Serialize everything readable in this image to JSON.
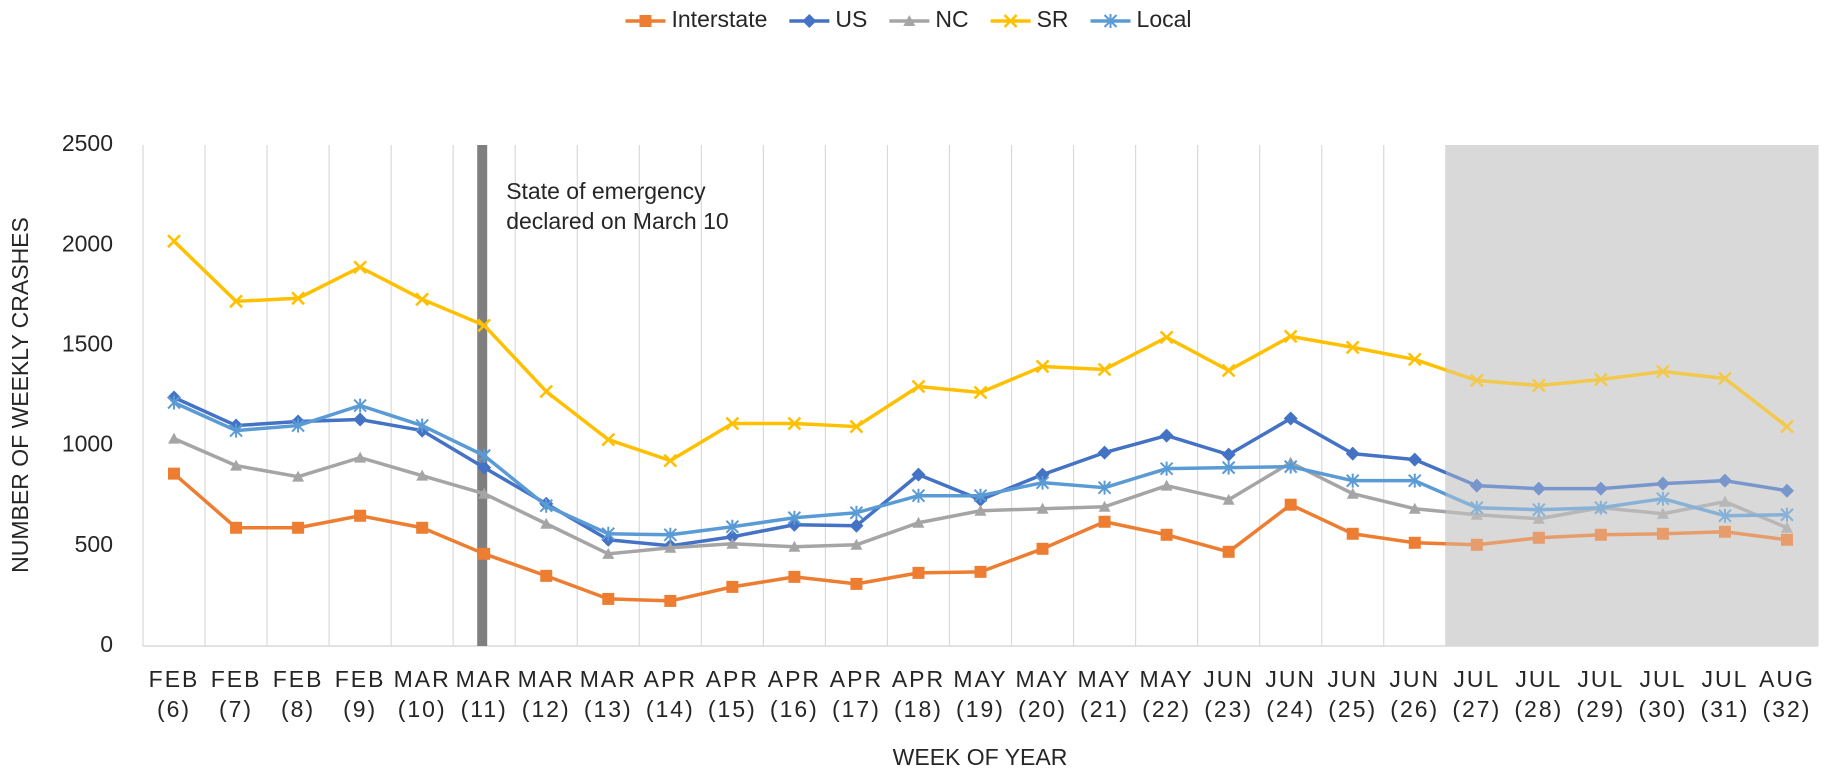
{
  "chart_data": {
    "type": "line",
    "x_label": "WEEK OF YEAR",
    "y_label": "NUMBER OF WEEKLY CRASHES",
    "categories": [
      "FEB (6)",
      "FEB (7)",
      "FEB (8)",
      "FEB (9)",
      "MAR (10)",
      "MAR (11)",
      "MAR (12)",
      "MAR (13)",
      "APR (14)",
      "APR (15)",
      "APR (16)",
      "APR (17)",
      "APR (18)",
      "MAY (19)",
      "MAY (20)",
      "MAY (21)",
      "MAY (22)",
      "JUN (23)",
      "JUN (24)",
      "JUN (25)",
      "JUN (26)",
      "JUL (27)",
      "JUL (28)",
      "JUL (29)",
      "JUL (30)",
      "JUL (31)",
      "AUG (32)"
    ],
    "series": [
      {
        "name": "Interstate",
        "color": "#ED7D31",
        "marker": "square",
        "values": [
          860,
          590,
          590,
          650,
          590,
          460,
          350,
          235,
          225,
          295,
          345,
          310,
          365,
          370,
          485,
          620,
          555,
          470,
          705,
          560,
          515,
          505,
          540,
          555,
          560,
          570,
          530
        ]
      },
      {
        "name": "US",
        "color": "#4472C4",
        "marker": "diamond",
        "values": [
          1240,
          1100,
          1120,
          1130,
          1075,
          890,
          710,
          530,
          500,
          545,
          605,
          600,
          855,
          730,
          855,
          965,
          1050,
          955,
          1135,
          960,
          930,
          800,
          785,
          785,
          810,
          825,
          775
        ]
      },
      {
        "name": "NC",
        "color": "#A5A5A5",
        "marker": "triangle",
        "values": [
          1035,
          900,
          845,
          940,
          850,
          760,
          610,
          460,
          490,
          510,
          495,
          505,
          615,
          675,
          685,
          695,
          800,
          730,
          915,
          760,
          685,
          655,
          635,
          690,
          660,
          720,
          590
        ]
      },
      {
        "name": "SR",
        "color": "#FFC000",
        "marker": "x",
        "values": [
          2020,
          1720,
          1735,
          1890,
          1730,
          1600,
          1270,
          1030,
          925,
          1110,
          1110,
          1095,
          1295,
          1265,
          1395,
          1380,
          1540,
          1375,
          1545,
          1490,
          1430,
          1325,
          1300,
          1330,
          1370,
          1335,
          1095
        ]
      },
      {
        "name": "Local",
        "color": "#5B9BD5",
        "marker": "asterisk",
        "values": [
          1215,
          1075,
          1100,
          1200,
          1100,
          950,
          700,
          560,
          555,
          595,
          640,
          665,
          750,
          750,
          815,
          790,
          885,
          890,
          895,
          825,
          825,
          690,
          680,
          690,
          735,
          650,
          655
        ]
      }
    ],
    "ylim": [
      0,
      2500
    ],
    "yticks": [
      0,
      500,
      1000,
      1500,
      2000,
      2500
    ],
    "annotation": {
      "text": [
        "State of emergency",
        "declared on March 10"
      ],
      "x": "MAR (11)"
    },
    "highlight_from": "JUL (27)",
    "legend": "top"
  }
}
